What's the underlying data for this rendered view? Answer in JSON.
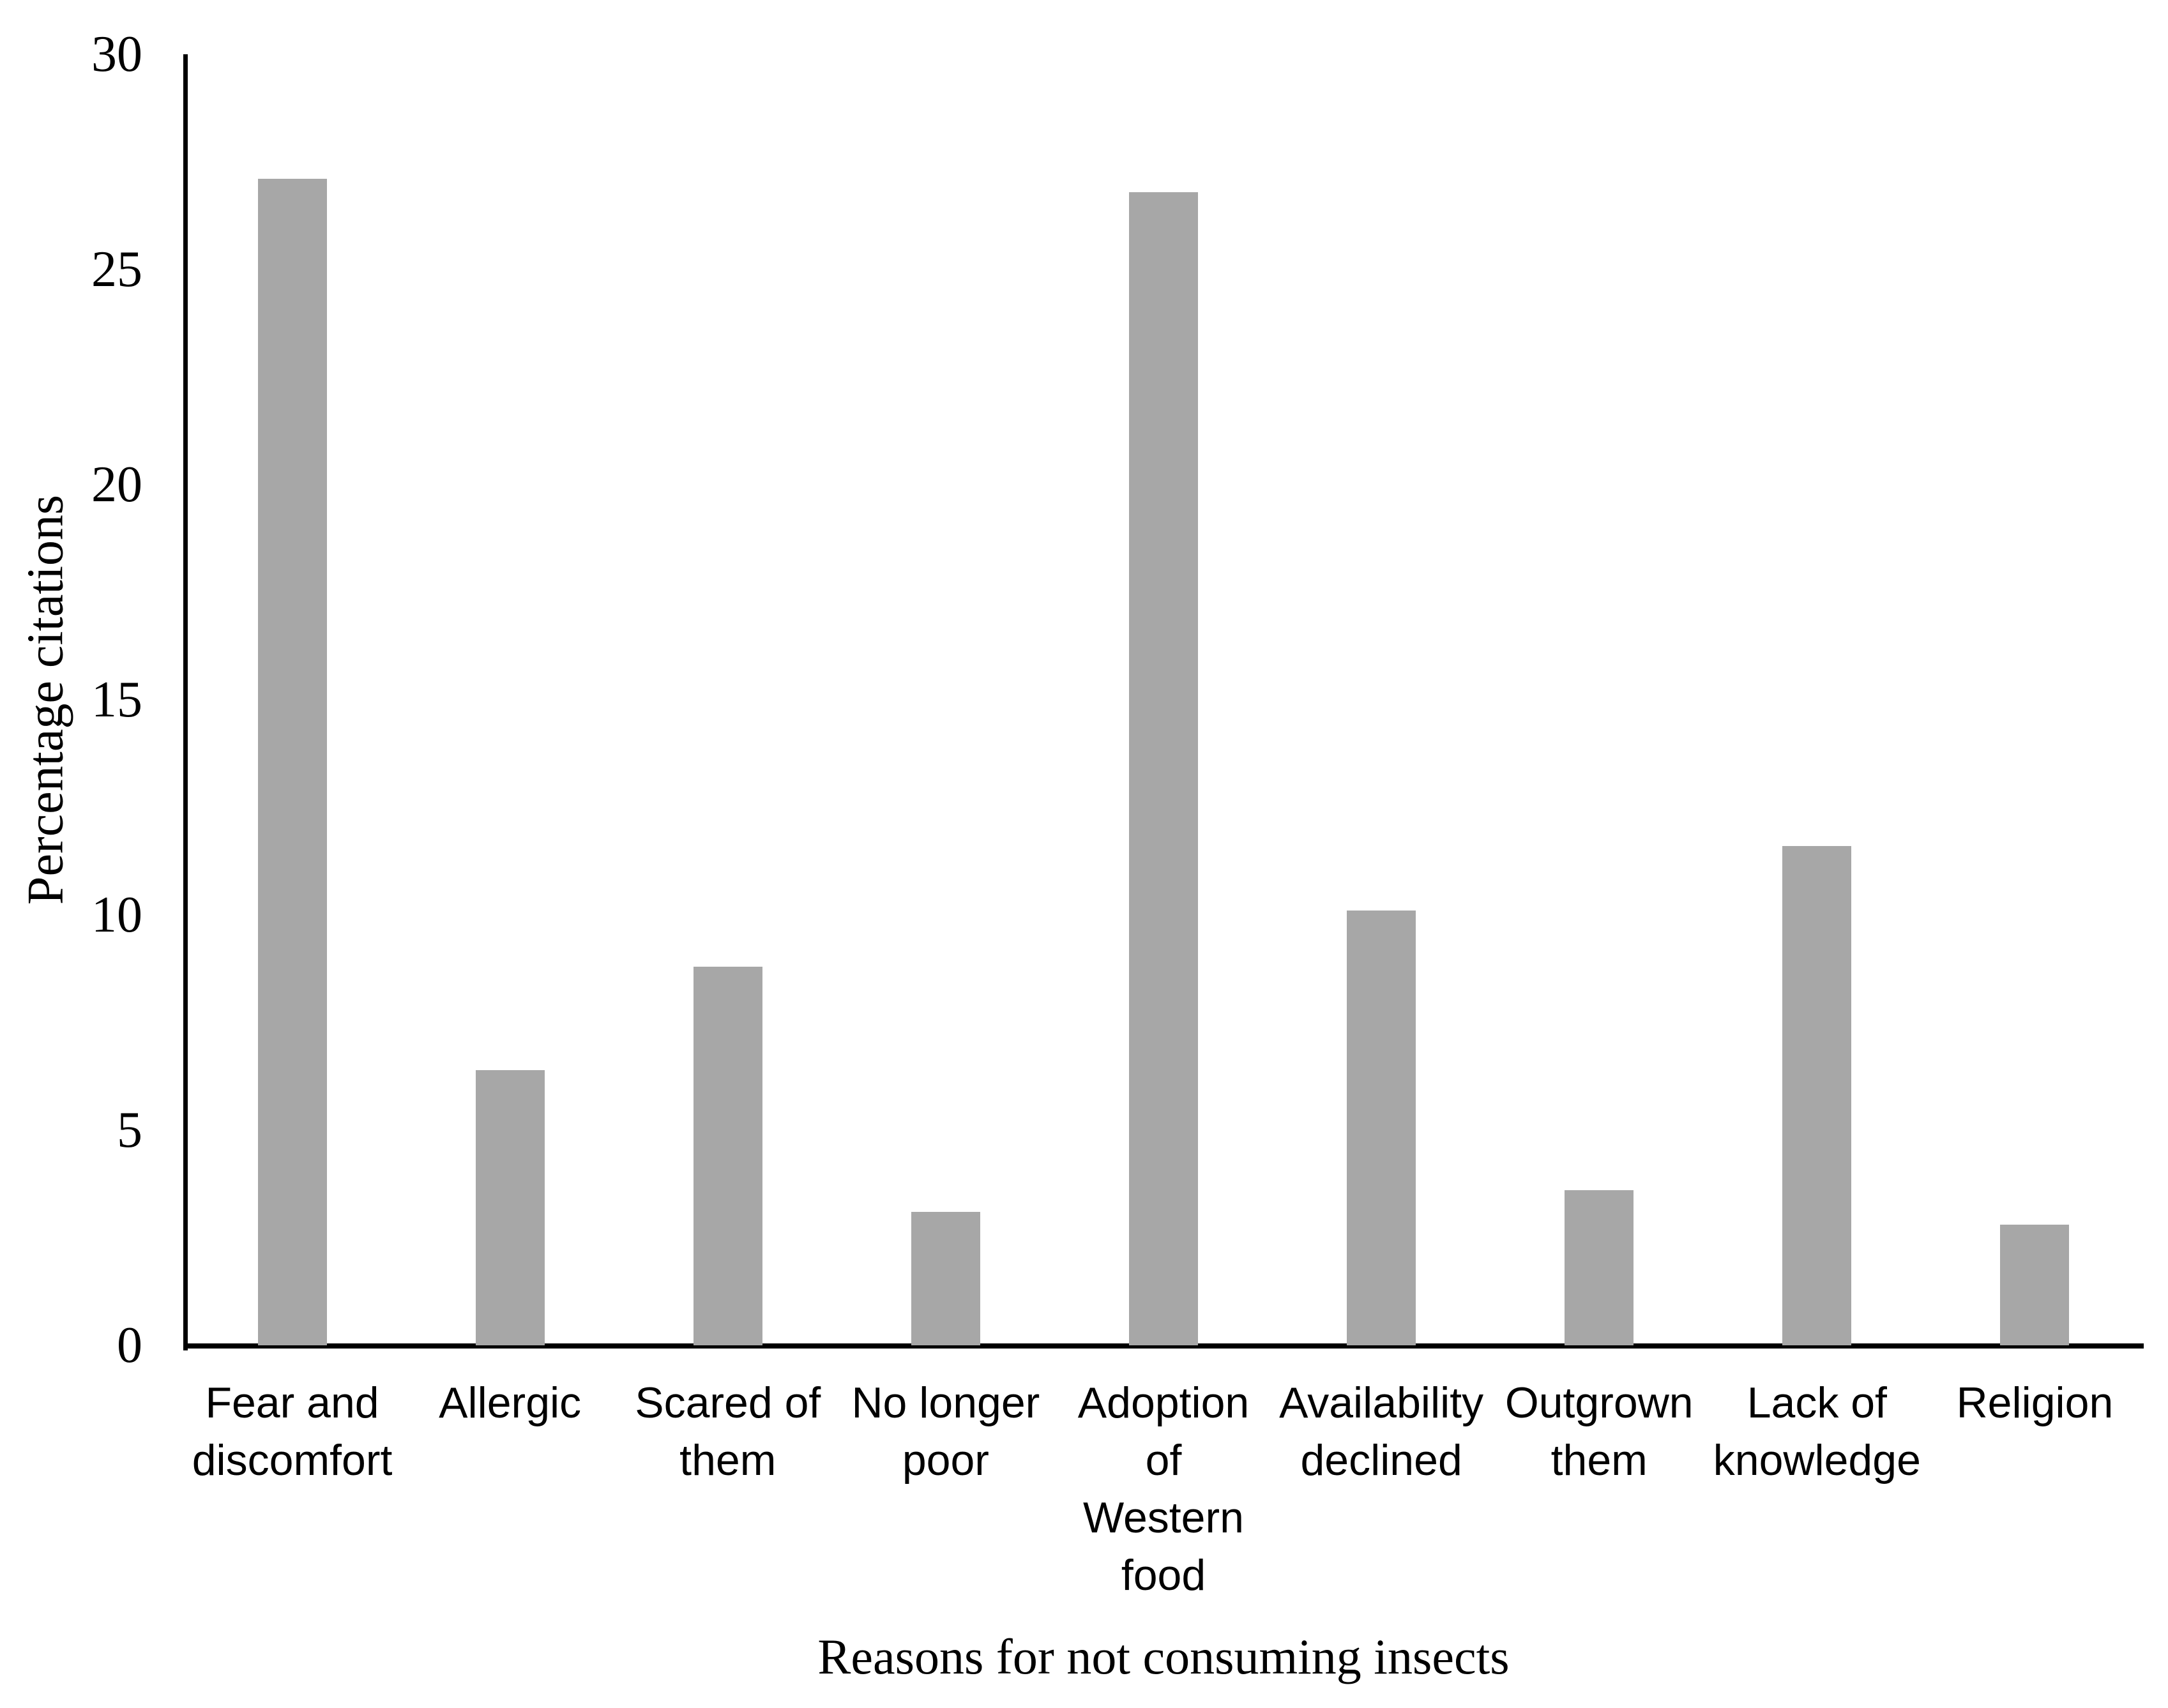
{
  "chart_data": {
    "type": "bar",
    "title": "",
    "xlabel": "Reasons for not consuming insects",
    "ylabel": "Percentage citations",
    "categories": [
      "Fear and discomfort",
      "Allergic",
      "Scared of them",
      "No longer poor",
      "Adoption of Western food",
      "Availability declined",
      "Outgrown them",
      "Lack of knowledge",
      "Religion"
    ],
    "category_line_breaks": [
      [
        "Fear and",
        "discomfort"
      ],
      [
        "Allergic"
      ],
      [
        "Scared of",
        "them"
      ],
      [
        "No longer",
        "poor"
      ],
      [
        "Adoption",
        "of",
        "Western",
        "food"
      ],
      [
        "Availability",
        "declined"
      ],
      [
        "Outgrown",
        "them"
      ],
      [
        "Lack of",
        "knowledge"
      ],
      [
        "Religion"
      ]
    ],
    "values": [
      27.1,
      6.4,
      8.8,
      3.1,
      26.8,
      10.1,
      3.6,
      11.6,
      2.8
    ],
    "ylim": [
      0,
      30
    ],
    "yticks": [
      0,
      5,
      10,
      15,
      20,
      25,
      30
    ],
    "bar_color": "#a7a7a7",
    "axis_color": "#000000",
    "grid": false,
    "legend": false
  }
}
